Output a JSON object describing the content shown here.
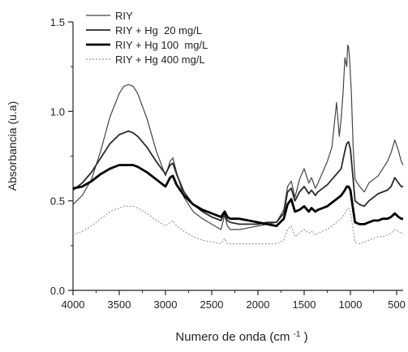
{
  "chart_data": {
    "type": "line",
    "xlabel": "Numero de onda",
    "xlabel_unit": "(cm",
    "xlabel_unit_sup": "-1",
    "xlabel_unit_close": ")",
    "ylabel": "Absorbancia (u.a)",
    "xlim": [
      4000,
      430
    ],
    "ylim": [
      0,
      1.5
    ],
    "x_reversed": true,
    "x_ticks": [
      {
        "value": 4000,
        "label": "4000"
      },
      {
        "value": 3500,
        "label": "3500"
      },
      {
        "value": 3000,
        "label": "3000"
      },
      {
        "value": 2500,
        "label": "2500"
      },
      {
        "value": 2000,
        "label": "2000"
      },
      {
        "value": 1500,
        "label": "1500"
      },
      {
        "value": 1000,
        "label": "1000"
      },
      {
        "value": 500,
        "label": "500"
      }
    ],
    "y_ticks": [
      {
        "value": 0.0,
        "label": "0.0"
      },
      {
        "value": 0.5,
        "label": "0.5"
      },
      {
        "value": 1.0,
        "label": "1.0"
      },
      {
        "value": 1.5,
        "label": "1.5"
      }
    ],
    "grid": false,
    "legend_position": "top-left",
    "series": [
      {
        "name": "RIY",
        "color": "#444444",
        "width": 1.2,
        "dash": "",
        "x": [
          4000,
          3900,
          3800,
          3700,
          3600,
          3500,
          3450,
          3400,
          3350,
          3300,
          3200,
          3100,
          3000,
          2950,
          2920,
          2880,
          2800,
          2700,
          2600,
          2500,
          2400,
          2360,
          2330,
          2300,
          2200,
          2100,
          2000,
          1900,
          1800,
          1720,
          1680,
          1640,
          1600,
          1550,
          1500,
          1450,
          1420,
          1380,
          1350,
          1300,
          1250,
          1200,
          1180,
          1150,
          1120,
          1100,
          1080,
          1060,
          1040,
          1030,
          1020,
          1010,
          990,
          970,
          950,
          900,
          850,
          800,
          750,
          700,
          650,
          600,
          560,
          520,
          480,
          450,
          430
        ],
        "y": [
          0.48,
          0.53,
          0.62,
          0.78,
          0.97,
          1.1,
          1.14,
          1.15,
          1.14,
          1.1,
          0.96,
          0.78,
          0.64,
          0.72,
          0.74,
          0.66,
          0.52,
          0.44,
          0.4,
          0.37,
          0.34,
          0.42,
          0.36,
          0.34,
          0.34,
          0.35,
          0.36,
          0.37,
          0.38,
          0.45,
          0.58,
          0.61,
          0.52,
          0.62,
          0.68,
          0.6,
          0.63,
          0.57,
          0.6,
          0.66,
          0.72,
          0.8,
          0.9,
          1.05,
          0.86,
          0.96,
          1.1,
          1.3,
          1.25,
          1.37,
          1.36,
          1.3,
          1.1,
          0.8,
          0.62,
          0.58,
          0.55,
          0.6,
          0.62,
          0.64,
          0.68,
          0.72,
          0.77,
          0.84,
          0.78,
          0.72,
          0.7
        ]
      },
      {
        "name": "RIY + Hg  20 mg/L",
        "color": "#2a2a2a",
        "width": 1.8,
        "dash": "",
        "x": [
          4000,
          3900,
          3800,
          3700,
          3600,
          3500,
          3450,
          3400,
          3350,
          3300,
          3200,
          3100,
          3000,
          2950,
          2920,
          2880,
          2800,
          2700,
          2600,
          2500,
          2400,
          2360,
          2330,
          2300,
          2200,
          2100,
          2000,
          1900,
          1800,
          1720,
          1680,
          1640,
          1600,
          1550,
          1500,
          1450,
          1420,
          1380,
          1350,
          1300,
          1250,
          1200,
          1150,
          1100,
          1060,
          1040,
          1020,
          1000,
          970,
          950,
          900,
          850,
          800,
          750,
          700,
          650,
          600,
          560,
          520,
          480,
          450,
          430
        ],
        "y": [
          0.56,
          0.6,
          0.66,
          0.74,
          0.82,
          0.87,
          0.88,
          0.89,
          0.88,
          0.86,
          0.8,
          0.72,
          0.65,
          0.7,
          0.71,
          0.65,
          0.55,
          0.48,
          0.44,
          0.41,
          0.39,
          0.43,
          0.39,
          0.38,
          0.37,
          0.37,
          0.37,
          0.38,
          0.38,
          0.43,
          0.55,
          0.57,
          0.5,
          0.55,
          0.58,
          0.54,
          0.56,
          0.53,
          0.55,
          0.57,
          0.59,
          0.62,
          0.65,
          0.68,
          0.78,
          0.82,
          0.83,
          0.79,
          0.62,
          0.5,
          0.48,
          0.47,
          0.5,
          0.52,
          0.54,
          0.55,
          0.56,
          0.58,
          0.63,
          0.6,
          0.58,
          0.58
        ]
      },
      {
        "name": "RIY + Hg 100  mg/L",
        "color": "#000000",
        "width": 2.8,
        "dash": "",
        "x": [
          4000,
          3900,
          3800,
          3700,
          3600,
          3500,
          3450,
          3400,
          3350,
          3300,
          3200,
          3100,
          3000,
          2950,
          2920,
          2880,
          2800,
          2700,
          2600,
          2500,
          2400,
          2360,
          2330,
          2300,
          2200,
          2100,
          2000,
          1900,
          1800,
          1720,
          1680,
          1640,
          1600,
          1550,
          1500,
          1450,
          1420,
          1380,
          1350,
          1300,
          1250,
          1200,
          1150,
          1100,
          1060,
          1040,
          1020,
          1000,
          970,
          950,
          900,
          850,
          800,
          750,
          700,
          650,
          600,
          560,
          520,
          480,
          450,
          430
        ],
        "y": [
          0.57,
          0.58,
          0.61,
          0.65,
          0.68,
          0.7,
          0.7,
          0.7,
          0.7,
          0.69,
          0.66,
          0.62,
          0.58,
          0.63,
          0.64,
          0.59,
          0.53,
          0.48,
          0.45,
          0.43,
          0.41,
          0.44,
          0.41,
          0.4,
          0.4,
          0.39,
          0.38,
          0.37,
          0.36,
          0.4,
          0.48,
          0.51,
          0.44,
          0.45,
          0.47,
          0.44,
          0.46,
          0.44,
          0.45,
          0.46,
          0.47,
          0.49,
          0.51,
          0.53,
          0.56,
          0.58,
          0.58,
          0.56,
          0.45,
          0.38,
          0.37,
          0.37,
          0.38,
          0.39,
          0.39,
          0.4,
          0.4,
          0.41,
          0.43,
          0.41,
          0.4,
          0.4
        ]
      },
      {
        "name": "RIY + Hg 400 mg/L",
        "color": "#9a9a9a",
        "width": 1.2,
        "dash": "2,2",
        "x": [
          4000,
          3900,
          3800,
          3700,
          3600,
          3500,
          3450,
          3400,
          3350,
          3300,
          3200,
          3100,
          3000,
          2950,
          2920,
          2880,
          2800,
          2700,
          2600,
          2500,
          2400,
          2360,
          2330,
          2300,
          2200,
          2100,
          2000,
          1900,
          1800,
          1720,
          1680,
          1640,
          1600,
          1550,
          1500,
          1450,
          1420,
          1380,
          1350,
          1300,
          1250,
          1200,
          1150,
          1100,
          1060,
          1040,
          1020,
          1000,
          970,
          950,
          900,
          850,
          800,
          750,
          700,
          650,
          600,
          560,
          520,
          480,
          450,
          430
        ],
        "y": [
          0.31,
          0.33,
          0.36,
          0.4,
          0.44,
          0.46,
          0.47,
          0.47,
          0.47,
          0.46,
          0.43,
          0.39,
          0.36,
          0.38,
          0.39,
          0.36,
          0.33,
          0.3,
          0.28,
          0.27,
          0.26,
          0.29,
          0.26,
          0.26,
          0.26,
          0.26,
          0.26,
          0.26,
          0.26,
          0.28,
          0.34,
          0.36,
          0.3,
          0.32,
          0.34,
          0.32,
          0.33,
          0.31,
          0.32,
          0.33,
          0.34,
          0.36,
          0.38,
          0.4,
          0.43,
          0.45,
          0.46,
          0.44,
          0.34,
          0.27,
          0.26,
          0.27,
          0.28,
          0.29,
          0.3,
          0.3,
          0.31,
          0.32,
          0.34,
          0.33,
          0.32,
          0.32
        ]
      }
    ]
  }
}
